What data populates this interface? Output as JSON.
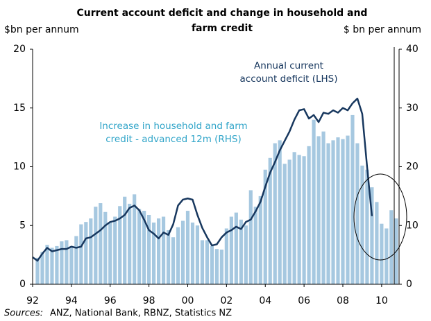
{
  "chart_data": {
    "type": "bar-line",
    "title": [
      "Current account deficit and change in household and",
      "farm credit"
    ],
    "y_label": "$bn per annum",
    "y2_label": "$ bn per annum",
    "source_label": "Sources:",
    "source": "ANZ, National Bank, RBNZ, Statistics NZ",
    "xlim": [
      1992,
      2010.9
    ],
    "xticks": [
      {
        "value": 1992,
        "label": "92"
      },
      {
        "value": 1994,
        "label": "94"
      },
      {
        "value": 1996,
        "label": "96"
      },
      {
        "value": 1998,
        "label": "98"
      },
      {
        "value": 2000,
        "label": "00"
      },
      {
        "value": 2002,
        "label": "02"
      },
      {
        "value": 2004,
        "label": "04"
      },
      {
        "value": 2006,
        "label": "06"
      },
      {
        "value": 2008,
        "label": "08"
      },
      {
        "value": 2010,
        "label": "10"
      }
    ],
    "ylim": [
      0,
      20
    ],
    "yticks": [
      0,
      5,
      10,
      15,
      20
    ],
    "y2lim": [
      0,
      40
    ],
    "y2ticks": [
      0,
      10,
      20,
      30,
      40
    ],
    "annotations": [
      {
        "lines": [
          "Annual current",
          "account deficit (LHS)"
        ],
        "color": "#17375e"
      },
      {
        "lines": [
          "Increase in household and farm",
          "credit - advanced 12m (RHS)"
        ],
        "color": "#31a5c9"
      }
    ],
    "series": [
      {
        "type": "bar",
        "axis": "y2",
        "color": "#a6c8e0",
        "x": [
          1992.25,
          1992.5,
          1992.75,
          1993,
          1993.25,
          1993.5,
          1993.75,
          1994,
          1994.25,
          1994.5,
          1994.75,
          1995,
          1995.25,
          1995.5,
          1995.75,
          1996,
          1996.25,
          1996.5,
          1996.75,
          1997,
          1997.25,
          1997.5,
          1997.75,
          1998,
          1998.25,
          1998.5,
          1998.75,
          1999,
          1999.25,
          1999.5,
          1999.75,
          2000,
          2000.25,
          2000.5,
          2000.75,
          2001,
          2001.25,
          2001.5,
          2001.75,
          2002,
          2002.25,
          2002.5,
          2002.75,
          2003,
          2003.25,
          2003.5,
          2003.75,
          2004,
          2004.25,
          2004.5,
          2004.75,
          2005,
          2005.25,
          2005.5,
          2005.75,
          2006,
          2006.25,
          2006.5,
          2006.75,
          2007,
          2007.25,
          2007.5,
          2007.75,
          2008,
          2008.25,
          2008.5,
          2008.75,
          2009,
          2009.25,
          2009.5,
          2009.75,
          2010,
          2010.25,
          2010.5,
          2010.75
        ],
        "values": [
          4.5,
          5.5,
          6.7,
          6.2,
          6.5,
          7.3,
          7.5,
          6.5,
          8.2,
          10.2,
          10.6,
          11.2,
          13.2,
          13.8,
          12.3,
          10.5,
          11.5,
          13.3,
          14.9,
          13.7,
          15.3,
          12.8,
          12.5,
          11.8,
          10.5,
          11.2,
          11.5,
          9.2,
          8.0,
          9.7,
          10.8,
          12.5,
          10.5,
          10.0,
          7.5,
          7.5,
          6.5,
          6.0,
          5.9,
          9.5,
          11.5,
          12.2,
          11.0,
          10.0,
          16.0,
          13.2,
          15.0,
          19.5,
          21.5,
          24.0,
          24.5,
          20.5,
          21.2,
          22.5,
          22.0,
          21.8,
          23.5,
          28.0,
          25.2,
          26.0,
          24.0,
          24.5,
          25.0,
          24.7,
          25.3,
          28.8,
          24.0,
          20.2,
          19.5,
          16.5,
          14.0,
          10.3,
          9.5,
          12.6,
          11.2
        ]
      },
      {
        "type": "line",
        "axis": "y",
        "color": "#17375e",
        "x": [
          1992,
          1992.25,
          1992.5,
          1992.75,
          1993,
          1993.25,
          1993.5,
          1993.75,
          1994,
          1994.25,
          1994.5,
          1994.75,
          1995,
          1995.25,
          1995.5,
          1995.75,
          1996,
          1996.25,
          1996.5,
          1996.75,
          1997,
          1997.25,
          1997.5,
          1997.75,
          1998,
          1998.25,
          1998.5,
          1998.75,
          1999,
          1999.25,
          1999.5,
          1999.75,
          2000,
          2000.25,
          2000.5,
          2000.75,
          2001,
          2001.25,
          2001.5,
          2001.75,
          2002,
          2002.25,
          2002.5,
          2002.75,
          2003,
          2003.25,
          2003.5,
          2003.75,
          2004,
          2004.25,
          2004.5,
          2004.75,
          2005,
          2005.25,
          2005.5,
          2005.75,
          2006,
          2006.25,
          2006.5,
          2006.75,
          2007,
          2007.25,
          2007.5,
          2007.75,
          2008,
          2008.25,
          2008.5,
          2008.75,
          2009,
          2009.25,
          2009.5
        ],
        "values": [
          2.3,
          2.0,
          2.6,
          3.1,
          2.8,
          2.9,
          3.0,
          3.0,
          3.2,
          3.1,
          3.2,
          3.9,
          4.0,
          4.3,
          4.6,
          5.0,
          5.3,
          5.4,
          5.6,
          5.9,
          6.5,
          6.7,
          6.3,
          5.5,
          4.6,
          4.3,
          3.9,
          4.4,
          4.2,
          5.1,
          6.7,
          7.2,
          7.3,
          7.2,
          5.9,
          4.8,
          4.0,
          3.3,
          3.4,
          4.0,
          4.4,
          4.6,
          4.9,
          4.7,
          5.3,
          5.5,
          6.2,
          7.0,
          8.3,
          9.5,
          10.4,
          11.4,
          12.2,
          13.0,
          14.0,
          14.8,
          14.9,
          14.1,
          14.4,
          13.8,
          14.6,
          14.5,
          14.8,
          14.6,
          15.0,
          14.8,
          15.4,
          15.8,
          14.5,
          10.0,
          5.8
        ]
      }
    ]
  }
}
